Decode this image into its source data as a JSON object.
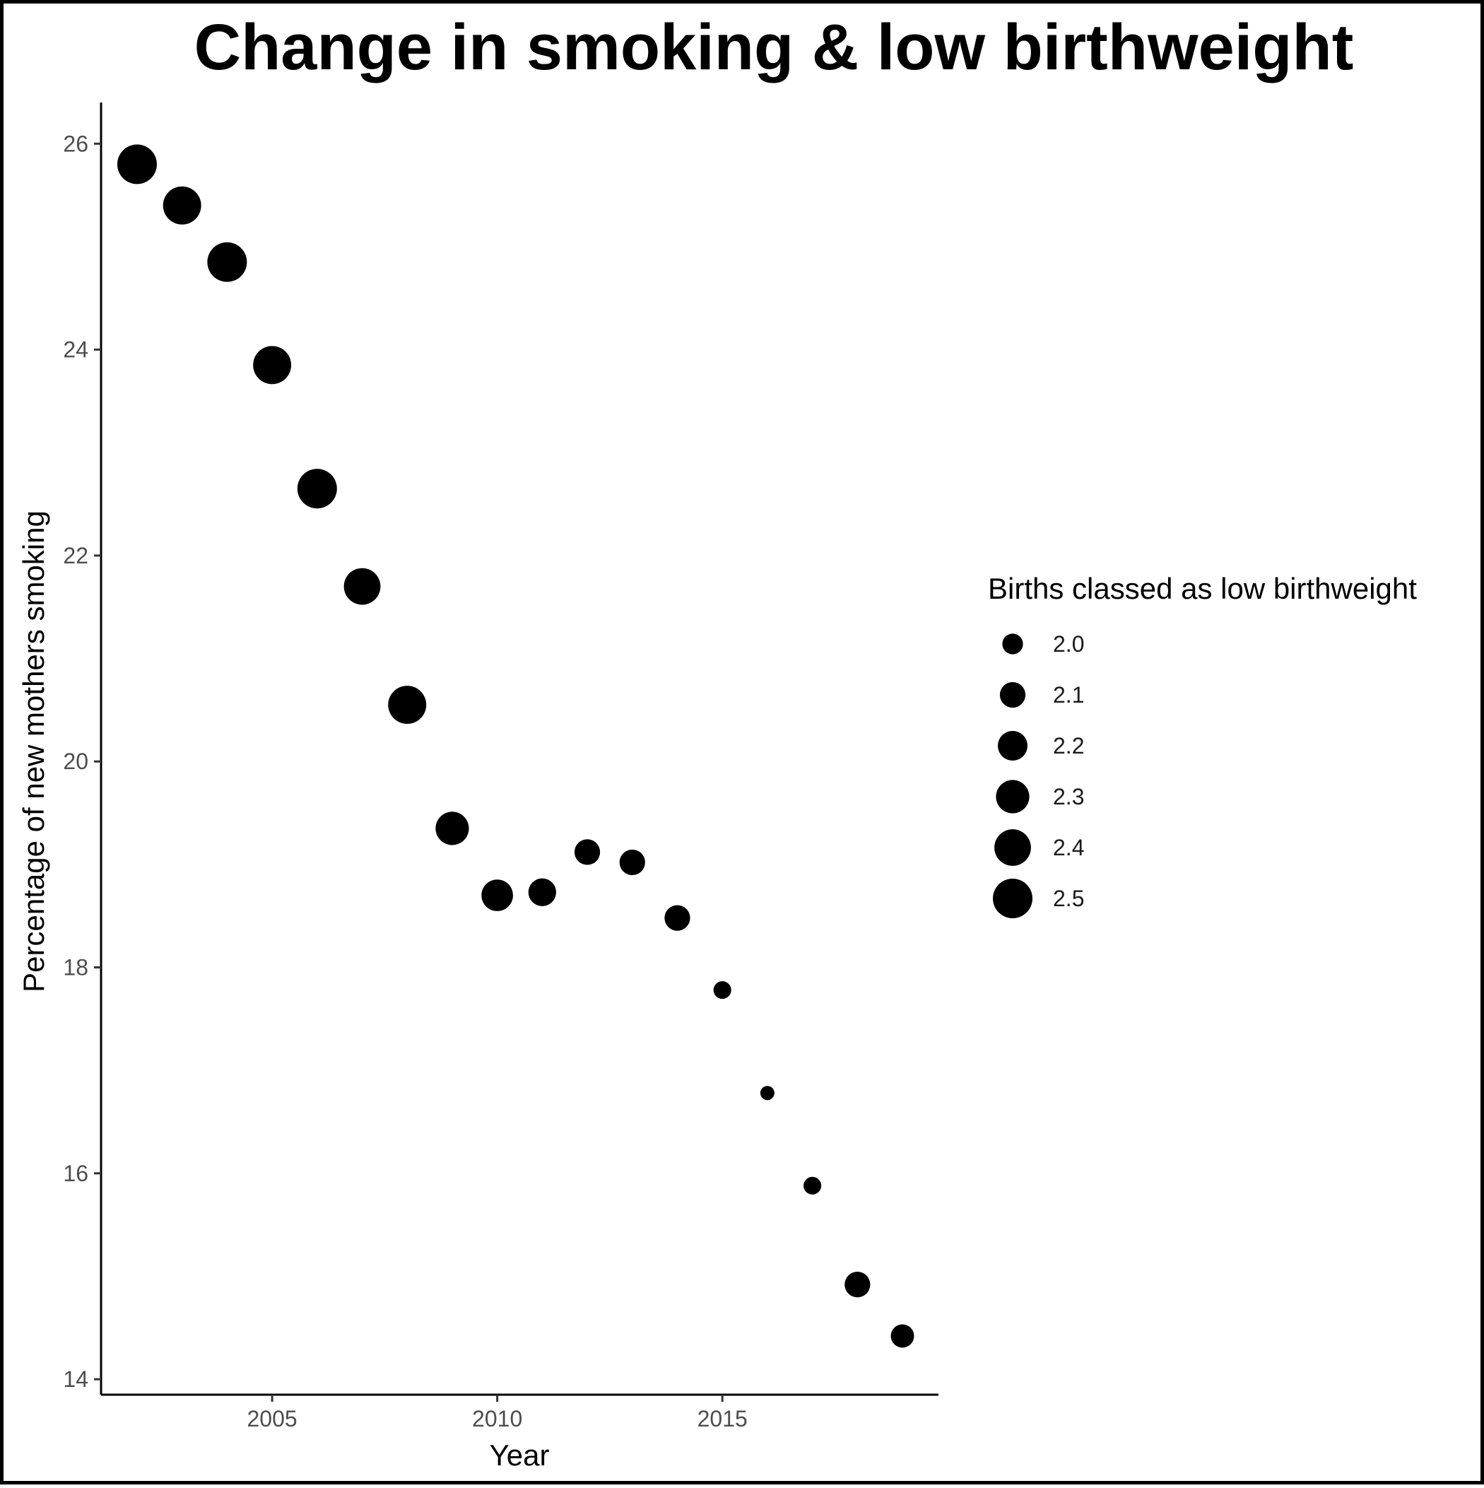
{
  "chart_data": {
    "type": "scatter",
    "title": "Change in smoking & low birthweight",
    "xlabel": "Year",
    "ylabel": "Percentage of new mothers smoking",
    "xlim": [
      2001.2,
      2019.8
    ],
    "ylim": [
      13.85,
      26.4
    ],
    "x_ticks": [
      2005,
      2010,
      2015
    ],
    "y_ticks": [
      14,
      16,
      18,
      20,
      22,
      24,
      26
    ],
    "grid": false,
    "size_legend": {
      "title": "Births classed as low birthweight",
      "position": "right",
      "entries": [
        {
          "label": "2.0",
          "value": 2.0
        },
        {
          "label": "2.1",
          "value": 2.1
        },
        {
          "label": "2.2",
          "value": 2.2
        },
        {
          "label": "2.3",
          "value": 2.3
        },
        {
          "label": "2.4",
          "value": 2.4
        },
        {
          "label": "2.5",
          "value": 2.5
        }
      ]
    },
    "marker_color": "#000000",
    "points": [
      {
        "x": 2002,
        "y": 25.8,
        "size": 2.5
      },
      {
        "x": 2003,
        "y": 25.4,
        "size": 2.45
      },
      {
        "x": 2004,
        "y": 24.85,
        "size": 2.5
      },
      {
        "x": 2005,
        "y": 23.85,
        "size": 2.45
      },
      {
        "x": 2006,
        "y": 22.65,
        "size": 2.5
      },
      {
        "x": 2007,
        "y": 21.7,
        "size": 2.4
      },
      {
        "x": 2008,
        "y": 20.55,
        "size": 2.45
      },
      {
        "x": 2009,
        "y": 19.35,
        "size": 2.3
      },
      {
        "x": 2010,
        "y": 18.7,
        "size": 2.25
      },
      {
        "x": 2011,
        "y": 18.73,
        "size": 2.15
      },
      {
        "x": 2012,
        "y": 19.12,
        "size": 2.1
      },
      {
        "x": 2013,
        "y": 19.02,
        "size": 2.1
      },
      {
        "x": 2014,
        "y": 18.48,
        "size": 2.1
      },
      {
        "x": 2015,
        "y": 17.78,
        "size": 1.95
      },
      {
        "x": 2016,
        "y": 16.78,
        "size": 1.9
      },
      {
        "x": 2017,
        "y": 15.88,
        "size": 1.95
      },
      {
        "x": 2018,
        "y": 14.92,
        "size": 2.1
      },
      {
        "x": 2019,
        "y": 14.42,
        "size": 2.05
      }
    ]
  }
}
